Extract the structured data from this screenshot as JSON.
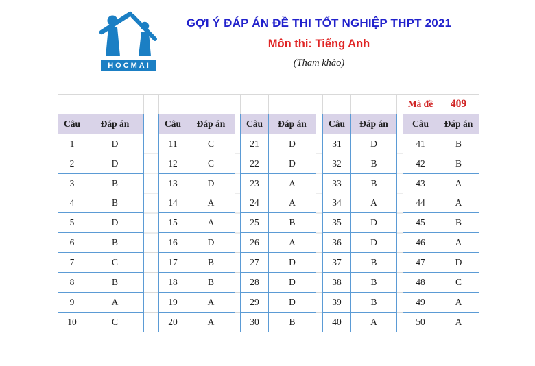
{
  "page": {
    "title": "GỢI Ý ĐÁP ÁN ĐỀ THI TỐT NGHIỆP THPT 2021",
    "subject": "Môn thi: Tiếng Anh",
    "note": "(Tham khảo)",
    "logo_text": "HOCMAI"
  },
  "exam_code": {
    "label": "Mã đề",
    "value": "409"
  },
  "answer_table": {
    "question_header": "Câu",
    "answer_header": "Đáp án",
    "groups": [
      {
        "rows": [
          [
            "1",
            "D"
          ],
          [
            "2",
            "D"
          ],
          [
            "3",
            "B"
          ],
          [
            "4",
            "B"
          ],
          [
            "5",
            "D"
          ],
          [
            "6",
            "B"
          ],
          [
            "7",
            "C"
          ],
          [
            "8",
            "B"
          ],
          [
            "9",
            "A"
          ],
          [
            "10",
            "C"
          ]
        ]
      },
      {
        "rows": [
          [
            "11",
            "C"
          ],
          [
            "12",
            "C"
          ],
          [
            "13",
            "D"
          ],
          [
            "14",
            "A"
          ],
          [
            "15",
            "A"
          ],
          [
            "16",
            "D"
          ],
          [
            "17",
            "B"
          ],
          [
            "18",
            "B"
          ],
          [
            "19",
            "A"
          ],
          [
            "20",
            "A"
          ]
        ]
      },
      {
        "rows": [
          [
            "21",
            "D"
          ],
          [
            "22",
            "D"
          ],
          [
            "23",
            "A"
          ],
          [
            "24",
            "A"
          ],
          [
            "25",
            "B"
          ],
          [
            "26",
            "A"
          ],
          [
            "27",
            "D"
          ],
          [
            "28",
            "D"
          ],
          [
            "29",
            "D"
          ],
          [
            "30",
            "B"
          ]
        ]
      },
      {
        "rows": [
          [
            "31",
            "D"
          ],
          [
            "32",
            "B"
          ],
          [
            "33",
            "B"
          ],
          [
            "34",
            "A"
          ],
          [
            "35",
            "D"
          ],
          [
            "36",
            "D"
          ],
          [
            "37",
            "B"
          ],
          [
            "38",
            "B"
          ],
          [
            "39",
            "B"
          ],
          [
            "40",
            "A"
          ]
        ]
      },
      {
        "rows": [
          [
            "41",
            "B"
          ],
          [
            "42",
            "B"
          ],
          [
            "43",
            "A"
          ],
          [
            "44",
            "A"
          ],
          [
            "45",
            "B"
          ],
          [
            "46",
            "A"
          ],
          [
            "47",
            "D"
          ],
          [
            "48",
            "C"
          ],
          [
            "49",
            "A"
          ],
          [
            "50",
            "A"
          ]
        ]
      }
    ]
  },
  "colors": {
    "title_blue": "#2222cc",
    "subject_red": "#e02424",
    "exam_code_red": "#d02424",
    "table_border_blue": "#5b9bd5",
    "header_fill_lavender": "#d9d3e8",
    "gridline_gray": "#d9d9d9",
    "logo_blue": "#1b7fc4"
  }
}
